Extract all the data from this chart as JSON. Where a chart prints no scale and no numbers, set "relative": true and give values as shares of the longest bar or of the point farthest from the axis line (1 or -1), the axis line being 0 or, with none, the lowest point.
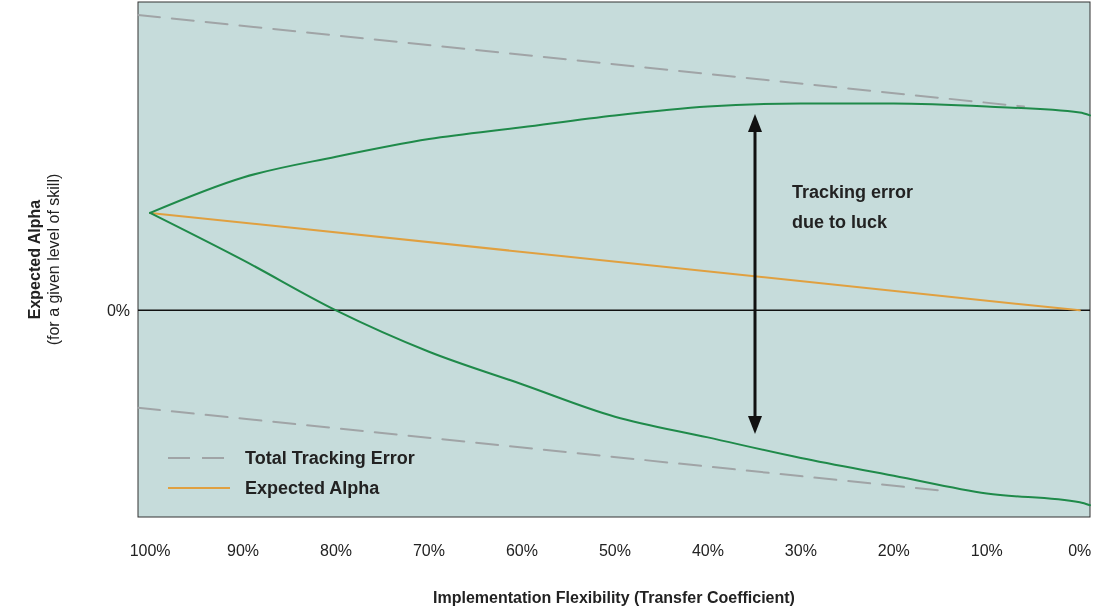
{
  "chart_data": {
    "type": "line",
    "relative": true,
    "xlabel": "Implementation Flexibility (Transfer Coefficient)",
    "ylabel": "Expected Alpha\n(for a given level of skill)",
    "xlim": [
      101.3,
      -1.1
    ],
    "xticks": [
      {
        "value": 100,
        "label": "100%"
      },
      {
        "value": 90,
        "label": "90%"
      },
      {
        "value": 80,
        "label": "80%"
      },
      {
        "value": 70,
        "label": "70%"
      },
      {
        "value": 60,
        "label": "60%"
      },
      {
        "value": 50,
        "label": "50%"
      },
      {
        "value": 40,
        "label": "40%"
      },
      {
        "value": 30,
        "label": "30%"
      },
      {
        "value": 20,
        "label": "20%"
      },
      {
        "value": 10,
        "label": "10%"
      },
      {
        "value": 0,
        "label": "0%"
      }
    ],
    "ref_lines": [
      {
        "axis": "y",
        "value": 0,
        "label": "0%",
        "color": "#111111"
      }
    ],
    "legend": "bottom left",
    "annotations": [
      "Tracking error\ndue to luck"
    ],
    "series": [
      {
        "name": "Total Tracking Error",
        "color": "#a0a4a6",
        "line_style": "dashed",
        "x": [
          101.3,
          6
        ],
        "values": [
          1.0,
          0.69
        ]
      },
      {
        "color": "#a0a4a6",
        "line_style": "dashed",
        "x": [
          101.3,
          15
        ],
        "values": [
          -0.33,
          -0.61
        ]
      },
      {
        "name": "Expected Alpha",
        "color": "#e0a040",
        "x": [
          100,
          0
        ],
        "values": [
          0.33,
          0
        ]
      },
      {
        "color": "#1f8a4a",
        "x": [
          100,
          90,
          80,
          70,
          60,
          50,
          40,
          30,
          20,
          10,
          0,
          -1.1
        ],
        "values": [
          0.33,
          0.45,
          0.52,
          0.58,
          0.62,
          0.66,
          0.69,
          0.7,
          0.7,
          0.69,
          0.67,
          0.66
        ]
      },
      {
        "color": "#1f8a4a",
        "x": [
          100,
          90,
          80,
          70,
          60,
          50,
          40,
          30,
          20,
          10,
          0,
          -1.1
        ],
        "values": [
          0.33,
          0.17,
          0,
          -0.14,
          -0.25,
          -0.36,
          -0.43,
          -0.5,
          -0.56,
          -0.62,
          -0.65,
          -0.66
        ]
      }
    ]
  }
}
